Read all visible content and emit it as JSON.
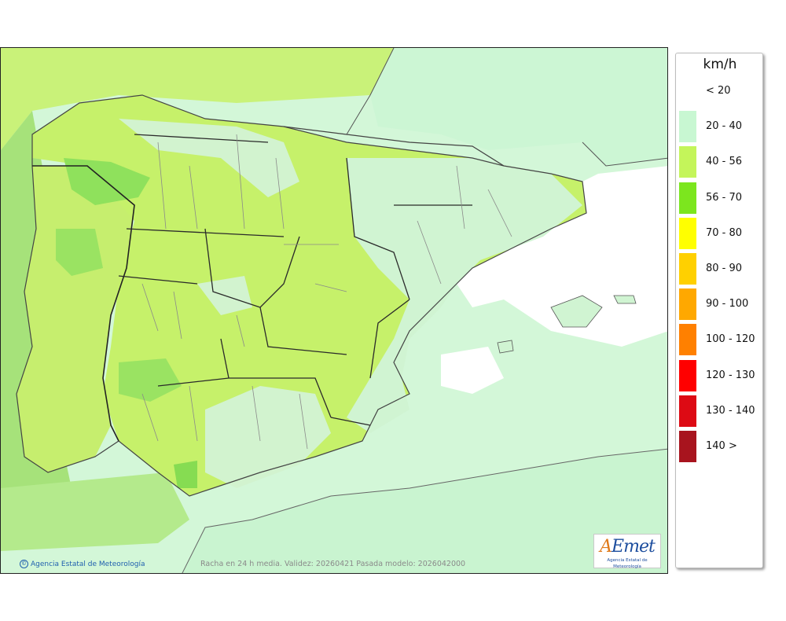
{
  "legend": {
    "title": "km/h",
    "items": [
      {
        "label": "< 20",
        "color": "#ffffff"
      },
      {
        "label": "20 - 40",
        "color": "#c8f7d2"
      },
      {
        "label": "40 - 56",
        "color": "#c4f55a"
      },
      {
        "label": "56 - 70",
        "color": "#7ce61e"
      },
      {
        "label": "70 - 80",
        "color": "#ffff00"
      },
      {
        "label": "80 - 90",
        "color": "#ffd000"
      },
      {
        "label": "90 - 100",
        "color": "#ffa800"
      },
      {
        "label": "100 - 120",
        "color": "#ff8000"
      },
      {
        "label": "120 - 130",
        "color": "#ff0000"
      },
      {
        "label": "130 - 140",
        "color": "#dd0a14"
      },
      {
        "label": "140 >",
        "color": "#a8141e"
      }
    ]
  },
  "map": {
    "sea_color": "#d3f7d8",
    "land_main_color": "#c6f16a",
    "land_low_color": "#cde8ae",
    "gust_56_70_color": "#92e55a",
    "calm_color": "#ffffff",
    "border_color": "#222222",
    "province_color": "#8a8a8a"
  },
  "footer": {
    "credit": "Agencia Estatal de Meteorología",
    "validity": "Racha en 24 h media. Validez: 20260421 Pasada modelo: 2026042000",
    "logo_main": "AEmet",
    "logo_sub": "Agencia Estatal de Meteorología"
  }
}
